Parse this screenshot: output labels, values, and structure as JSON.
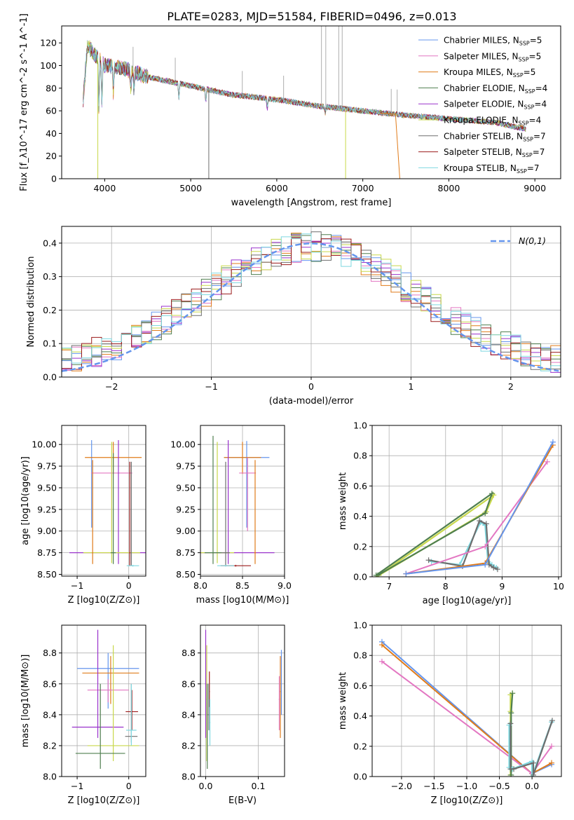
{
  "title": "PLATE=0283, MJD=51584, FIBERID=0496, z=0.013",
  "colors": {
    "Chabrier MILES": "#6495ed",
    "Salpeter MILES": "#e377c2",
    "Kroupa MILES": "#e07b1a",
    "Chabrier ELODIE": "#4f7f4f",
    "Salpeter ELODIE": "#9932cc",
    "Kroupa ELODIE": "#c8d84a",
    "Chabrier STELIB": "#6e6e6e",
    "Salpeter STELIB": "#9b1b1b",
    "Kroupa STELIB": "#7fd8e0",
    "normal": "#6495ed",
    "data": "#999999"
  },
  "chart_data": [
    {
      "id": "spectrum",
      "type": "line",
      "xlabel": "wavelength [Angstrom, rest frame]",
      "ylabel": "Flux [f_λ10^-17 erg cm^-2 s^-1 A^-1]",
      "xlim": [
        3500,
        9300
      ],
      "ylim": [
        0,
        135
      ],
      "xticks": [
        "4000",
        "5000",
        "6000",
        "7000",
        "8000",
        "9000"
      ],
      "yticks": [
        "0",
        "20",
        "40",
        "60",
        "80",
        "100",
        "120"
      ],
      "legend": [
        "Chabrier MILES, N_SSP=5",
        "Salpeter MILES, N_SSP=5",
        "Kroupa MILES, N_SSP=5",
        "Chabrier ELODIE, N_SSP=4",
        "Salpeter ELODIE, N_SSP=4",
        "Kroupa ELODIE, N_SSP=4",
        "Chabrier STELIB, N_SSP=7",
        "Salpeter STELIB, N_SSP=7",
        "Kroupa STELIB, N_SSP=7"
      ],
      "continuum": [
        [
          3750,
          70
        ],
        [
          3800,
          118
        ],
        [
          3900,
          108
        ],
        [
          4000,
          100
        ],
        [
          4200,
          98
        ],
        [
          4500,
          90
        ],
        [
          5000,
          82
        ],
        [
          5500,
          74
        ],
        [
          6000,
          70
        ],
        [
          6500,
          64
        ],
        [
          7000,
          60
        ],
        [
          7500,
          56
        ],
        [
          8000,
          53
        ],
        [
          8500,
          50
        ],
        [
          8900,
          44
        ]
      ]
    },
    {
      "id": "residuals",
      "type": "line",
      "xlabel": "(data-model)/error",
      "ylabel": "Normed distribution",
      "legend": [
        "N(0,1)"
      ],
      "xlim": [
        -2.5,
        2.5
      ],
      "ylim": [
        0,
        0.45
      ],
      "xticks": [
        "-2",
        "-1",
        "0",
        "1",
        "2"
      ],
      "yticks": [
        "0.0",
        "0.1",
        "0.2",
        "0.3",
        "0.4"
      ]
    },
    {
      "id": "age_vs_Z",
      "type": "scatter",
      "xlabel": "Z [log10(Z/Z⊙)]",
      "ylabel": "age [log10(age/yr)]",
      "xlim": [
        -1.3,
        0.33
      ],
      "ylim": [
        8.48,
        10.22
      ],
      "xticks": [
        "-1",
        "0"
      ],
      "yticks": [
        "8.50",
        "8.75",
        "9.00",
        "9.25",
        "9.50",
        "9.75",
        "10.00"
      ],
      "points": [
        {
          "m": "Chabrier MILES",
          "x": -0.72,
          "y": 9.85,
          "xe": 0.02,
          "ye": [
            9.04,
            10.05
          ]
        },
        {
          "m": "Kroupa MILES",
          "x": -0.3,
          "y": 9.85,
          "xe": 0.55,
          "ye": [
            9.66,
            10.03
          ]
        },
        {
          "m": "Salpeter MILES",
          "x": -0.33,
          "y": 9.67,
          "xe": 0.4,
          "ye": [
            9.0,
            9.85
          ]
        },
        {
          "m": "Salpeter ELODIE",
          "x": -0.2,
          "y": 8.75,
          "xe": 0.95,
          "ye": [
            8.62,
            10.05
          ]
        },
        {
          "m": "Kroupa ELODIE",
          "x": -0.33,
          "y": 8.75,
          "xe": 0.55,
          "ye": [
            8.63,
            10.03
          ]
        },
        {
          "m": "Chabrier ELODIE",
          "x": -0.3,
          "y": 8.75,
          "xe": 0.05,
          "ye": [
            8.62,
            9.9
          ]
        },
        {
          "m": "Kroupa MILES",
          "x": -0.7,
          "y": 8.75,
          "xe": 0.01,
          "ye": [
            8.62,
            9.82
          ]
        },
        {
          "m": "Chabrier STELIB",
          "x": 0.05,
          "y": 8.75,
          "xe": 0.01,
          "ye": [
            8.6,
            9.8
          ]
        },
        {
          "m": "Salpeter STELIB",
          "x": 0.02,
          "y": 8.75,
          "xe": 0.01,
          "ye": [
            8.6,
            9.8
          ]
        },
        {
          "m": "Kroupa STELIB",
          "x": 0.08,
          "y": 8.6,
          "xe": 0.12,
          "ye": [
            8.59,
            8.61
          ]
        }
      ]
    },
    {
      "id": "age_vs_mass",
      "type": "scatter",
      "xlabel": "mass [log10(M/M⊙)]",
      "ylabel": "",
      "xlim": [
        8.0,
        9.0
      ],
      "ylim": [
        8.48,
        10.22
      ],
      "xticks": [
        "8.0",
        "8.5",
        "9.0"
      ],
      "yticks": [
        "8.50",
        "8.75",
        "9.00",
        "9.25",
        "9.50",
        "9.75",
        "10.00"
      ],
      "points": [
        {
          "m": "Chabrier MILES",
          "x": 8.55,
          "y": 9.85,
          "xe": 0.27,
          "ye": [
            9.04,
            10.04
          ]
        },
        {
          "m": "Kroupa MILES",
          "x": 8.5,
          "y": 9.85,
          "xe": 0.22,
          "ye": [
            9.66,
            10.03
          ]
        },
        {
          "m": "Salpeter MILES",
          "x": 8.56,
          "y": 9.67,
          "xe": 0.1,
          "ye": [
            9.0,
            9.85
          ]
        },
        {
          "m": "Salpeter ELODIE",
          "x": 8.33,
          "y": 8.75,
          "xe": 0.55,
          "ye": [
            8.62,
            10.05
          ]
        },
        {
          "m": "Kroupa ELODIE",
          "x": 8.2,
          "y": 8.75,
          "xe": 0.2,
          "ye": [
            8.63,
            10.03
          ]
        },
        {
          "m": "Chabrier ELODIE",
          "x": 8.15,
          "y": 8.75,
          "xe": 0.1,
          "ye": [
            8.62,
            10.1
          ]
        },
        {
          "m": "Kroupa MILES",
          "x": 8.65,
          "y": 8.75,
          "xe": 0.01,
          "ye": [
            8.62,
            9.82
          ]
        },
        {
          "m": "Chabrier STELIB",
          "x": 8.3,
          "y": 8.75,
          "xe": 0.05,
          "ye": [
            8.6,
            9.8
          ]
        },
        {
          "m": "Salpeter STELIB",
          "x": 8.42,
          "y": 8.6,
          "xe": 0.18,
          "ye": [
            8.59,
            8.61
          ]
        },
        {
          "m": "Kroupa STELIB",
          "x": 8.3,
          "y": 8.6,
          "xe": 0.1,
          "ye": [
            8.59,
            8.61
          ]
        }
      ]
    },
    {
      "id": "weight_vs_age",
      "type": "line",
      "xlabel": "age [log10(age/yr)]",
      "ylabel": "mass weight",
      "xlim": [
        6.7,
        10.05
      ],
      "ylim": [
        0,
        1.0
      ],
      "xticks": [
        "7",
        "8",
        "9",
        "10"
      ],
      "yticks": [
        "0.0",
        "0.2",
        "0.4",
        "0.6",
        "0.8",
        "1.0"
      ],
      "series": [
        {
          "m": "Kroupa ELODIE",
          "x": [
            6.82,
            8.72,
            8.85,
            6.78
          ],
          "y": [
            0.01,
            0.43,
            0.54,
            0.0
          ]
        },
        {
          "m": "Chabrier ELODIE",
          "x": [
            6.8,
            8.7,
            8.82,
            6.77
          ],
          "y": [
            0.01,
            0.42,
            0.55,
            0.01
          ]
        },
        {
          "m": "Kroupa STELIB",
          "x": [
            7.75,
            8.25,
            8.62,
            8.7,
            8.75,
            8.82,
            8.9
          ],
          "y": [
            0.1,
            0.08,
            0.36,
            0.34,
            0.1,
            0.08,
            0.06
          ]
        },
        {
          "m": "Chabrier STELIB",
          "x": [
            7.7,
            8.3,
            8.6,
            8.72,
            8.77,
            8.85,
            8.92
          ],
          "y": [
            0.11,
            0.07,
            0.37,
            0.35,
            0.08,
            0.06,
            0.05
          ]
        },
        {
          "m": "Salpeter MILES",
          "x": [
            7.3,
            8.7,
            9.8
          ],
          "y": [
            0.02,
            0.2,
            0.76
          ]
        },
        {
          "m": "Kroupa MILES",
          "x": [
            7.3,
            8.7,
            9.9
          ],
          "y": [
            0.02,
            0.09,
            0.87
          ]
        },
        {
          "m": "Chabrier MILES",
          "x": [
            7.3,
            8.7,
            9.9
          ],
          "y": [
            0.02,
            0.08,
            0.89
          ]
        }
      ]
    },
    {
      "id": "mass_vs_Z",
      "type": "scatter",
      "xlabel": "Z [log10(Z/Z⊙)]",
      "ylabel": "mass [log10(M/M⊙)]",
      "xlim": [
        -1.3,
        0.33
      ],
      "ylim": [
        8.0,
        8.98
      ],
      "xticks": [
        "-1",
        "0"
      ],
      "yticks": [
        "8.0",
        "8.2",
        "8.4",
        "8.6",
        "8.8"
      ],
      "points": [
        {
          "m": "Chabrier MILES",
          "x": -0.4,
          "y": 8.7,
          "xe": 0.6,
          "ye": [
            8.44,
            8.8
          ]
        },
        {
          "m": "Kroupa MILES",
          "x": -0.35,
          "y": 8.67,
          "xe": 0.55,
          "ye": [
            8.47,
            8.78
          ]
        },
        {
          "m": "Salpeter MILES",
          "x": -0.4,
          "y": 8.56,
          "xe": 0.4,
          "ye": [
            8.48,
            8.63
          ]
        },
        {
          "m": "Salpeter ELODIE",
          "x": -0.6,
          "y": 8.32,
          "xe": 0.5,
          "ye": [
            8.25,
            8.95
          ]
        },
        {
          "m": "Kroupa ELODIE",
          "x": -0.3,
          "y": 8.2,
          "xe": 0.5,
          "ye": [
            8.1,
            8.85
          ]
        },
        {
          "m": "Chabrier ELODIE",
          "x": -0.55,
          "y": 8.15,
          "xe": 0.48,
          "ye": [
            8.05,
            8.6
          ]
        },
        {
          "m": "Chabrier STELIB",
          "x": 0.05,
          "y": 8.26,
          "xe": 0.12,
          "ye": [
            8.22,
            8.6
          ]
        },
        {
          "m": "Salpeter STELIB",
          "x": 0.06,
          "y": 8.42,
          "xe": 0.12,
          "ye": [
            8.3,
            8.56
          ]
        },
        {
          "m": "Kroupa STELIB",
          "x": 0.05,
          "y": 8.3,
          "xe": 0.1,
          "ye": [
            8.2,
            8.6
          ]
        }
      ]
    },
    {
      "id": "mass_vs_EBV",
      "type": "scatter",
      "xlabel": "E(B-V)",
      "ylabel": "",
      "xlim": [
        -0.01,
        0.15
      ],
      "ylim": [
        8.0,
        8.98
      ],
      "xticks": [
        "0.0",
        "0.1"
      ],
      "yticks": [
        "8.0",
        "8.2",
        "8.4",
        "8.6",
        "8.8"
      ],
      "points": [
        {
          "m": "Salpeter ELODIE",
          "x": 0.0,
          "y": 8.6,
          "xe": 0.001,
          "ye": [
            8.25,
            8.95
          ]
        },
        {
          "m": "Kroupa ELODIE",
          "x": 0.002,
          "y": 8.5,
          "xe": 0.001,
          "ye": [
            8.1,
            8.85
          ]
        },
        {
          "m": "Chabrier ELODIE",
          "x": 0.003,
          "y": 8.4,
          "xe": 0.001,
          "ye": [
            8.05,
            8.6
          ]
        },
        {
          "m": "Salpeter STELIB",
          "x": 0.007,
          "y": 8.55,
          "xe": 0.001,
          "ye": [
            8.45,
            8.68
          ]
        },
        {
          "m": "Chabrier STELIB",
          "x": 0.006,
          "y": 8.4,
          "xe": 0.001,
          "ye": [
            8.3,
            8.6
          ]
        },
        {
          "m": "Kroupa STELIB",
          "x": 0.008,
          "y": 8.35,
          "xe": 0.001,
          "ye": [
            8.2,
            8.5
          ]
        },
        {
          "m": "Chabrier MILES",
          "x": 0.144,
          "y": 8.6,
          "xe": 0.001,
          "ye": [
            8.4,
            8.82
          ]
        },
        {
          "m": "Kroupa MILES",
          "x": 0.142,
          "y": 8.55,
          "xe": 0.001,
          "ye": [
            8.25,
            8.78
          ]
        },
        {
          "m": "Salpeter MILES",
          "x": 0.14,
          "y": 8.5,
          "xe": 0.001,
          "ye": [
            8.3,
            8.65
          ]
        }
      ]
    },
    {
      "id": "weight_vs_Z",
      "type": "line",
      "xlabel": "Z [log10(Z/Z⊙)]",
      "ylabel": "mass weight",
      "xlim": [
        -2.45,
        0.45
      ],
      "ylim": [
        0,
        1.0
      ],
      "xticks": [
        "-2.0",
        "-1.5",
        "-1.0",
        "-0.5",
        "0.0"
      ],
      "yticks": [
        "0.0",
        "0.2",
        "0.4",
        "0.6",
        "0.8",
        "1.0"
      ],
      "series": [
        {
          "m": "Chabrier MILES",
          "x": [
            -2.3,
            0.0,
            0.3
          ],
          "y": [
            0.89,
            0.02,
            0.08
          ]
        },
        {
          "m": "Kroupa MILES",
          "x": [
            -2.3,
            0.0,
            0.3
          ],
          "y": [
            0.87,
            0.02,
            0.09
          ]
        },
        {
          "m": "Salpeter MILES",
          "x": [
            -2.3,
            0.0,
            0.3
          ],
          "y": [
            0.76,
            0.02,
            0.2
          ]
        },
        {
          "m": "Kroupa ELODIE",
          "x": [
            -0.33,
            -0.33,
            -0.33,
            -0.3
          ],
          "y": [
            0.01,
            0.43,
            0.54,
            0.55
          ]
        },
        {
          "m": "Chabrier ELODIE",
          "x": [
            -0.32,
            -0.32,
            -0.3
          ],
          "y": [
            0.01,
            0.42,
            0.55
          ]
        },
        {
          "m": "Kroupa STELIB",
          "x": [
            -0.35,
            -0.35,
            -0.3,
            0.0,
            0.0,
            0.3
          ],
          "y": [
            0.34,
            0.06,
            0.05,
            0.1,
            0.0,
            0.36
          ]
        },
        {
          "m": "Chabrier STELIB",
          "x": [
            -0.33,
            -0.33,
            -0.28,
            0.02,
            0.02,
            0.31
          ],
          "y": [
            0.35,
            0.05,
            0.05,
            0.09,
            0.01,
            0.37
          ]
        }
      ]
    }
  ]
}
